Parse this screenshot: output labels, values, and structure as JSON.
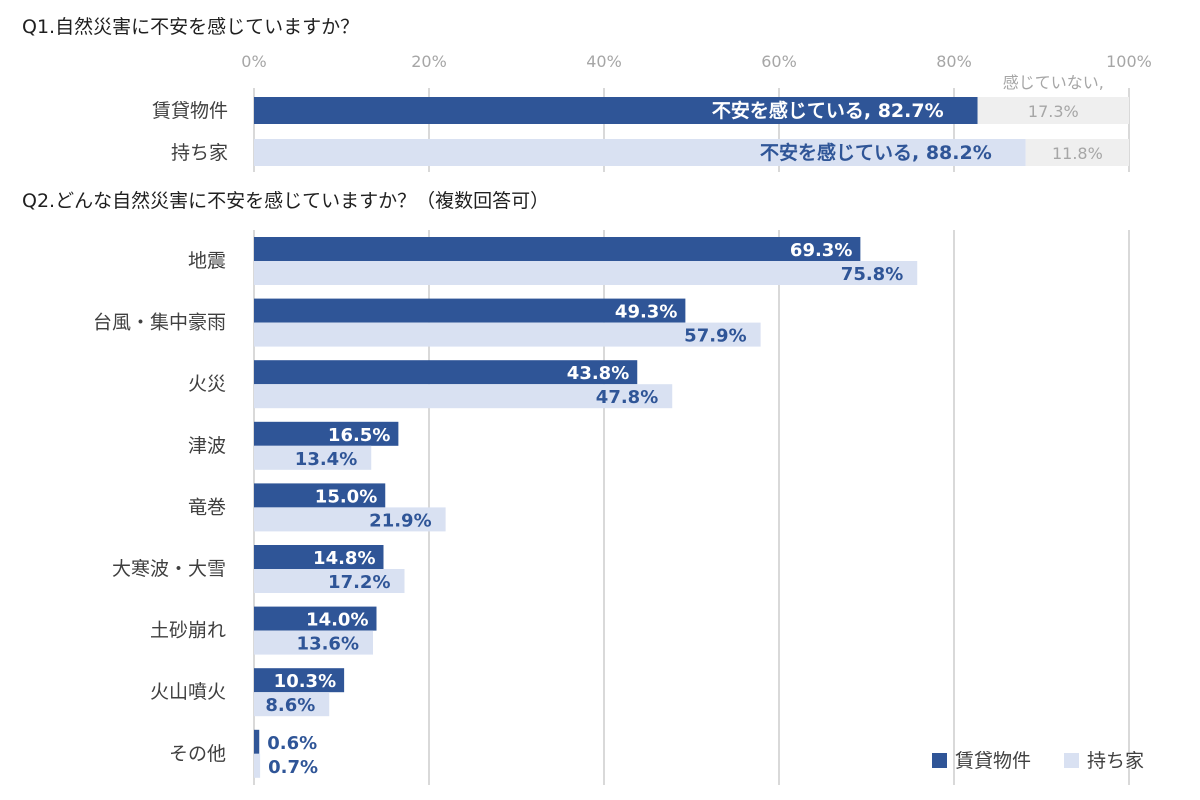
{
  "chart_data": [
    {
      "type": "bar",
      "stacked": true,
      "orientation": "horizontal",
      "title": "Q1.自然災害に不安を感じていますか？",
      "xlim": [
        0,
        100
      ],
      "x_ticks": [
        "0%",
        "20%",
        "40%",
        "60%",
        "80%",
        "100%"
      ],
      "categories": [
        "賃貸物件",
        "持ち家"
      ],
      "series": [
        {
          "name": "不安を感じている",
          "values": [
            82.7,
            88.2
          ]
        },
        {
          "name": "感じていない",
          "values": [
            17.3,
            11.8
          ]
        }
      ],
      "data_labels": {
        "anxious": [
          "不安を感じている, 82.7%",
          "不安を感じている, 88.2%"
        ],
        "not_anxious": [
          "17.3%",
          "11.8%"
        ],
        "not_anxious_name": "感じていない,"
      },
      "grid": "vertical"
    },
    {
      "type": "bar",
      "orientation": "horizontal",
      "title": "Q2.どんな自然災害に不安を感じていますか？（複数回答可）",
      "xlim": [
        0,
        100
      ],
      "categories": [
        "地震",
        "台風・集中豪雨",
        "火災",
        "津波",
        "竜巻",
        "大寒波・大雪",
        "土砂崩れ",
        "火山噴火",
        "その他"
      ],
      "series": [
        {
          "name": "賃貸物件",
          "values": [
            69.3,
            49.3,
            43.8,
            16.5,
            15.0,
            14.8,
            14.0,
            10.3,
            0.6
          ],
          "labels": [
            "69.3%",
            "49.3%",
            "43.8%",
            "16.5%",
            "15.0%",
            "14.8%",
            "14.0%",
            "10.3%",
            "0.6%"
          ]
        },
        {
          "name": "持ち家",
          "values": [
            75.8,
            57.9,
            47.8,
            13.4,
            21.9,
            17.2,
            13.6,
            8.6,
            0.7
          ],
          "labels": [
            "75.8%",
            "57.9%",
            "47.8%",
            "13.4%",
            "21.9%",
            "17.2%",
            "13.6%",
            "8.6%",
            "0.7%"
          ]
        }
      ],
      "legend": [
        "賃貸物件",
        "持ち家"
      ],
      "legend_position": "bottom-right",
      "grid": "vertical"
    }
  ],
  "colors": {
    "rental": "#2f5597",
    "owned": "#d9e1f2",
    "not_anxious": "#efefef",
    "grid": "#d9d9d9",
    "owned_label": "#2f5597"
  }
}
